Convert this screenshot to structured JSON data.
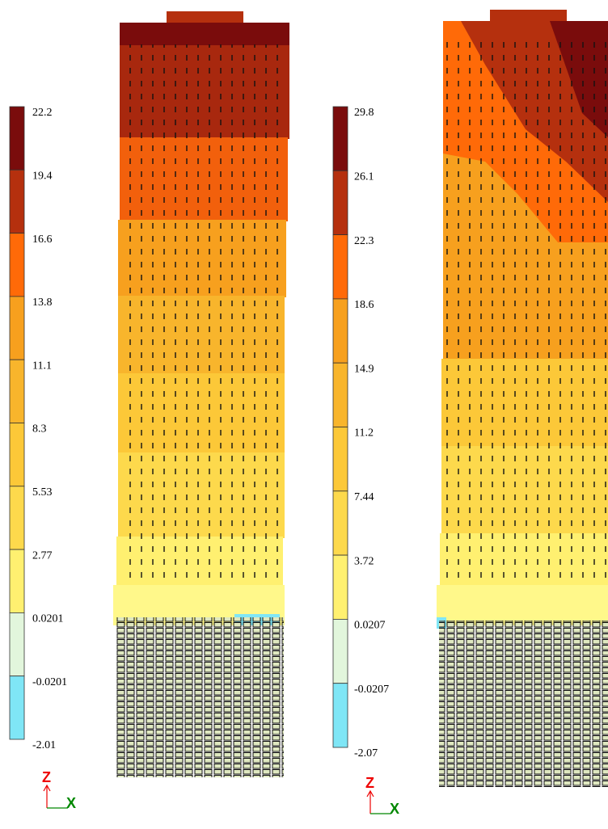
{
  "panels": [
    {
      "legend": {
        "labels": [
          "22.2",
          "19.4",
          "16.6",
          "13.8",
          "11.1",
          "8.3",
          "5.53",
          "2.77",
          "0.0201",
          "-0.0201",
          "-2.01"
        ],
        "colors": [
          "#7a0c0c",
          "#b5300e",
          "#ff6a08",
          "#f7a01e",
          "#f8b52c",
          "#fcc838",
          "#fdd94c",
          "#fff070",
          "#e2f6dc",
          "#7fe6f6"
        ]
      },
      "axes": {
        "z": "Z",
        "x": "X"
      }
    },
    {
      "legend": {
        "labels": [
          "29.8",
          "26.1",
          "22.3",
          "18.6",
          "14.9",
          "11.2",
          "7.44",
          "3.72",
          "0.0207",
          "-0.0207",
          "-2.07"
        ],
        "colors": [
          "#7a0c0c",
          "#b5300e",
          "#ff6a08",
          "#f7a01e",
          "#f8b52c",
          "#fcc838",
          "#fdd94c",
          "#fff070",
          "#e2f6dc",
          "#7fe6f6"
        ]
      },
      "axes": {
        "z": "Z",
        "x": "X"
      }
    }
  ]
}
